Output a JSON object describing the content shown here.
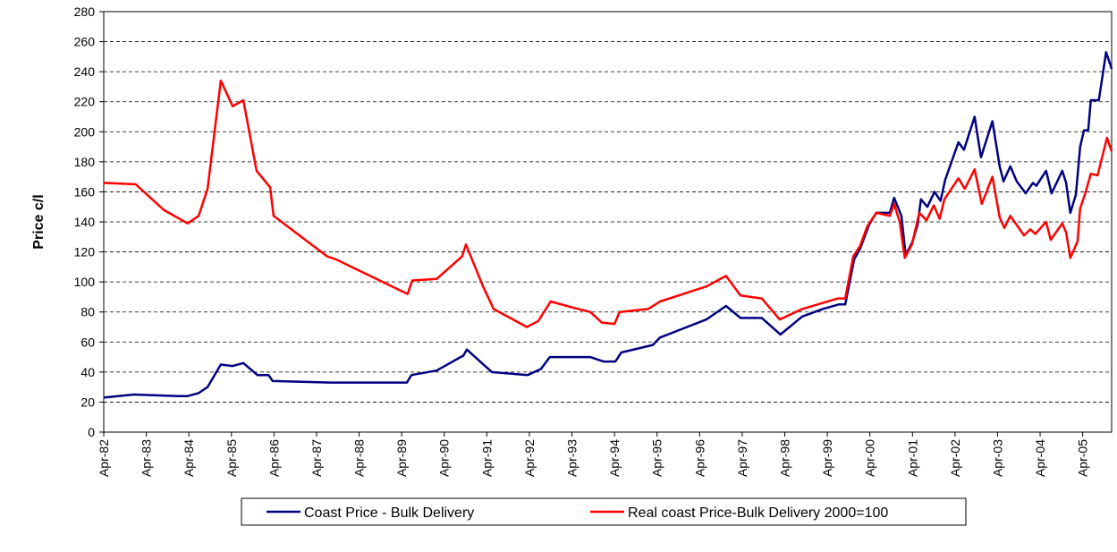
{
  "chart_data": {
    "type": "line",
    "y_label": "Price c/l",
    "xlim": [
      1982.25,
      2005.93
    ],
    "xticks": [
      {
        "value": 1982.25,
        "label": "Apr-82"
      },
      {
        "value": 1983.25,
        "label": "Apr-83"
      },
      {
        "value": 1984.25,
        "label": "Apr-84"
      },
      {
        "value": 1985.25,
        "label": "Apr-85"
      },
      {
        "value": 1986.25,
        "label": "Apr-86"
      },
      {
        "value": 1987.25,
        "label": "Apr-87"
      },
      {
        "value": 1988.25,
        "label": "Apr-88"
      },
      {
        "value": 1989.25,
        "label": "Apr-89"
      },
      {
        "value": 1990.25,
        "label": "Apr-90"
      },
      {
        "value": 1991.25,
        "label": "Apr-91"
      },
      {
        "value": 1992.25,
        "label": "Apr-92"
      },
      {
        "value": 1993.25,
        "label": "Apr-93"
      },
      {
        "value": 1994.25,
        "label": "Apr-94"
      },
      {
        "value": 1995.25,
        "label": "Apr-95"
      },
      {
        "value": 1996.25,
        "label": "Apr-96"
      },
      {
        "value": 1997.25,
        "label": "Apr-97"
      },
      {
        "value": 1998.25,
        "label": "Apr-98"
      },
      {
        "value": 1999.25,
        "label": "Apr-99"
      },
      {
        "value": 2000.25,
        "label": "Apr-00"
      },
      {
        "value": 2001.25,
        "label": "Apr-01"
      },
      {
        "value": 2002.25,
        "label": "Apr-02"
      },
      {
        "value": 2003.25,
        "label": "Apr-03"
      },
      {
        "value": 2004.25,
        "label": "Apr-04"
      },
      {
        "value": 2005.25,
        "label": "Apr-05"
      }
    ],
    "ylim": [
      0,
      280
    ],
    "yticks": [
      0,
      20,
      40,
      60,
      80,
      100,
      120,
      140,
      160,
      180,
      200,
      220,
      240,
      260,
      280
    ],
    "grid": true,
    "legend": "bottom",
    "series": [
      {
        "name": "Coast Price - Bulk  Delivery",
        "color": "#000080",
        "x": [
          1982.25,
          1982.96,
          1984.01,
          1984.22,
          1984.48,
          1984.69,
          1985.0,
          1985.28,
          1985.53,
          1985.86,
          1986.12,
          1986.22,
          1987.59,
          1989.37,
          1989.48,
          1990.07,
          1990.7,
          1990.78,
          1991.37,
          1992.21,
          1992.52,
          1992.73,
          1993.68,
          1993.99,
          1994.27,
          1994.41,
          1995.15,
          1995.32,
          1996.41,
          1996.87,
          1997.21,
          1997.71,
          1998.15,
          1998.66,
          1999.14,
          1999.52,
          1999.67,
          1999.88,
          2000.02,
          2000.23,
          2000.4,
          2000.72,
          2000.82,
          2000.99,
          2001.09,
          2001.24,
          2001.37,
          2001.45,
          2001.6,
          2001.77,
          2001.91,
          2002.02,
          2002.33,
          2002.46,
          2002.71,
          2002.86,
          2003.13,
          2003.3,
          2003.39,
          2003.55,
          2003.7,
          2003.91,
          2004.08,
          2004.16,
          2004.39,
          2004.52,
          2004.77,
          2004.86,
          2004.96,
          2005.09,
          2005.19,
          2005.28,
          2005.38,
          2005.44,
          2005.63,
          2005.8,
          2005.93
        ],
        "values": [
          23,
          25,
          24,
          24,
          26,
          30,
          45,
          44,
          46,
          38,
          38,
          34,
          33,
          33,
          38,
          41,
          51,
          55,
          40,
          38,
          42,
          50,
          50,
          47,
          47,
          53,
          58,
          63,
          75,
          84,
          76,
          76,
          65,
          77,
          82,
          85,
          85,
          115,
          122,
          138,
          146,
          146,
          156,
          144,
          118,
          126,
          138,
          155,
          150,
          160,
          154,
          168,
          193,
          188,
          210,
          183,
          207,
          177,
          167,
          177,
          167,
          159,
          166,
          164,
          174,
          159,
          174,
          166,
          146,
          158,
          190,
          201,
          201,
          221,
          221,
          253,
          242
        ]
      },
      {
        "name": "Real coast Price-Bulk Delivery 2000=100",
        "color": "#ff0000",
        "x": [
          1982.25,
          1983.0,
          1983.66,
          1984.22,
          1984.48,
          1984.69,
          1985.0,
          1985.28,
          1985.53,
          1985.84,
          1986.16,
          1986.24,
          1987.5,
          1987.71,
          1989.39,
          1989.5,
          1990.07,
          1990.67,
          1990.76,
          1991.16,
          1991.41,
          1992.19,
          1992.46,
          1992.75,
          1993.26,
          1993.68,
          1993.95,
          1994.25,
          1994.37,
          1995.04,
          1995.32,
          1996.41,
          1996.87,
          1997.21,
          1997.71,
          1998.13,
          1998.66,
          1999.5,
          1999.67,
          1999.86,
          2000.02,
          2000.19,
          2000.4,
          2000.72,
          2000.82,
          2000.95,
          2001.07,
          2001.24,
          2001.41,
          2001.58,
          2001.75,
          2001.89,
          2002.0,
          2002.33,
          2002.48,
          2002.71,
          2002.88,
          2003.13,
          2003.3,
          2003.41,
          2003.55,
          2003.87,
          2004.02,
          2004.14,
          2004.39,
          2004.5,
          2004.77,
          2004.86,
          2004.96,
          2005.13,
          2005.19,
          2005.3,
          2005.44,
          2005.6,
          2005.82,
          2005.93
        ],
        "values": [
          166,
          165,
          148,
          139,
          144,
          162,
          234,
          217,
          221,
          174,
          163,
          144,
          117,
          115,
          92,
          101,
          102,
          117,
          125,
          97,
          82,
          70,
          74,
          87,
          83,
          80,
          73,
          72,
          80,
          82,
          87,
          97,
          104,
          91,
          89,
          75,
          82,
          89,
          89,
          117,
          124,
          137,
          146,
          144,
          152,
          140,
          116,
          125,
          146,
          141,
          151,
          142,
          155,
          169,
          162,
          175,
          152,
          170,
          143,
          136,
          144,
          131,
          135,
          132,
          140,
          128,
          139,
          133,
          116,
          127,
          149,
          158,
          172,
          171,
          196,
          187
        ]
      }
    ]
  }
}
